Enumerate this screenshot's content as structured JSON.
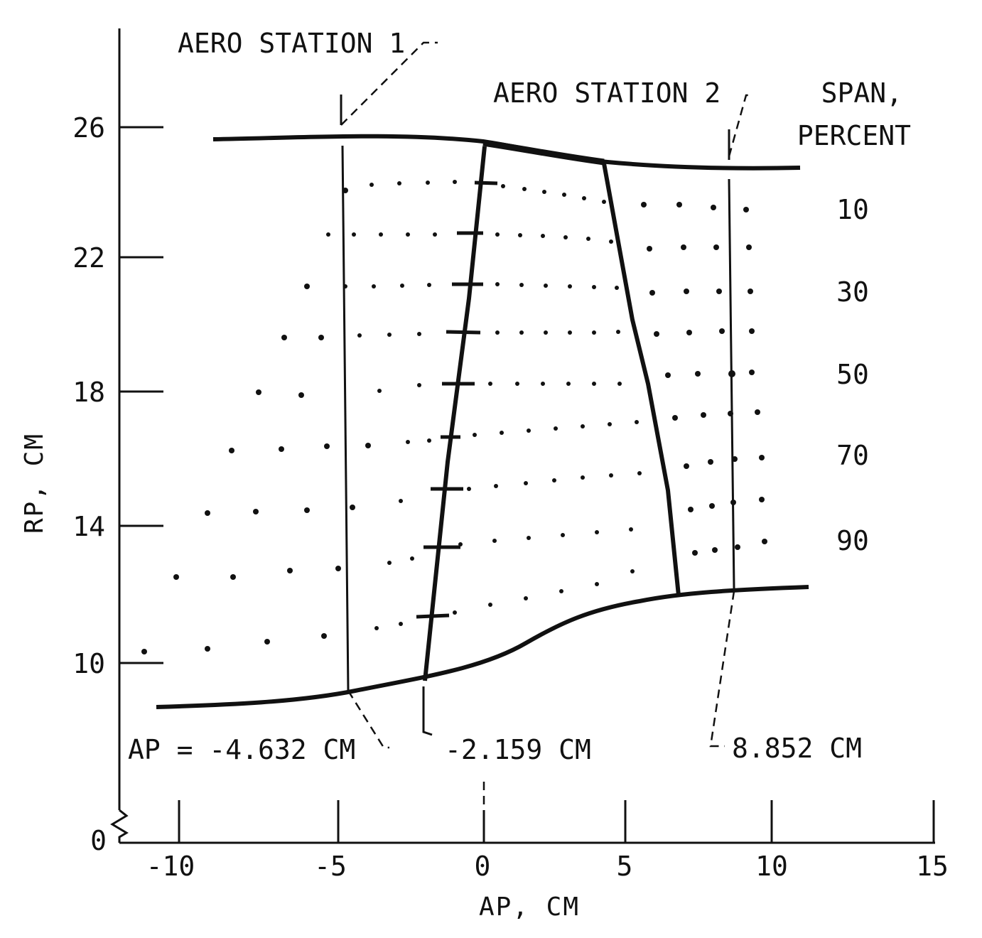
{
  "labels": {
    "station1": "AERO STATION 1",
    "station2": "AERO STATION 2",
    "span_line1": "SPAN,",
    "span_line2": "PERCENT",
    "ap_left": "AP = -4.632 CM",
    "ap_mid": "-2.159 CM",
    "ap_right": "8.852 CM"
  },
  "span_percent_labels": [
    "10",
    "30",
    "50",
    "70",
    "90"
  ],
  "axes": {
    "x_title": "AP, CM",
    "y_title": "RP, CM",
    "x_ticks": [
      "-10",
      "-5",
      "0",
      "5",
      "10",
      "15"
    ],
    "y_ticks": [
      "26",
      "22",
      "18",
      "14",
      "10",
      "0"
    ],
    "x_range": [
      -12,
      15
    ],
    "y_range_broken": [
      9,
      28
    ],
    "y_axis_break": true
  },
  "stations": {
    "aero_station_1_ap": -4.632,
    "blade_leading_hub_ap": -2.159,
    "aero_station_2_ap": 8.852
  },
  "colors": {
    "ink": "#111111",
    "background": "#ffffff"
  }
}
